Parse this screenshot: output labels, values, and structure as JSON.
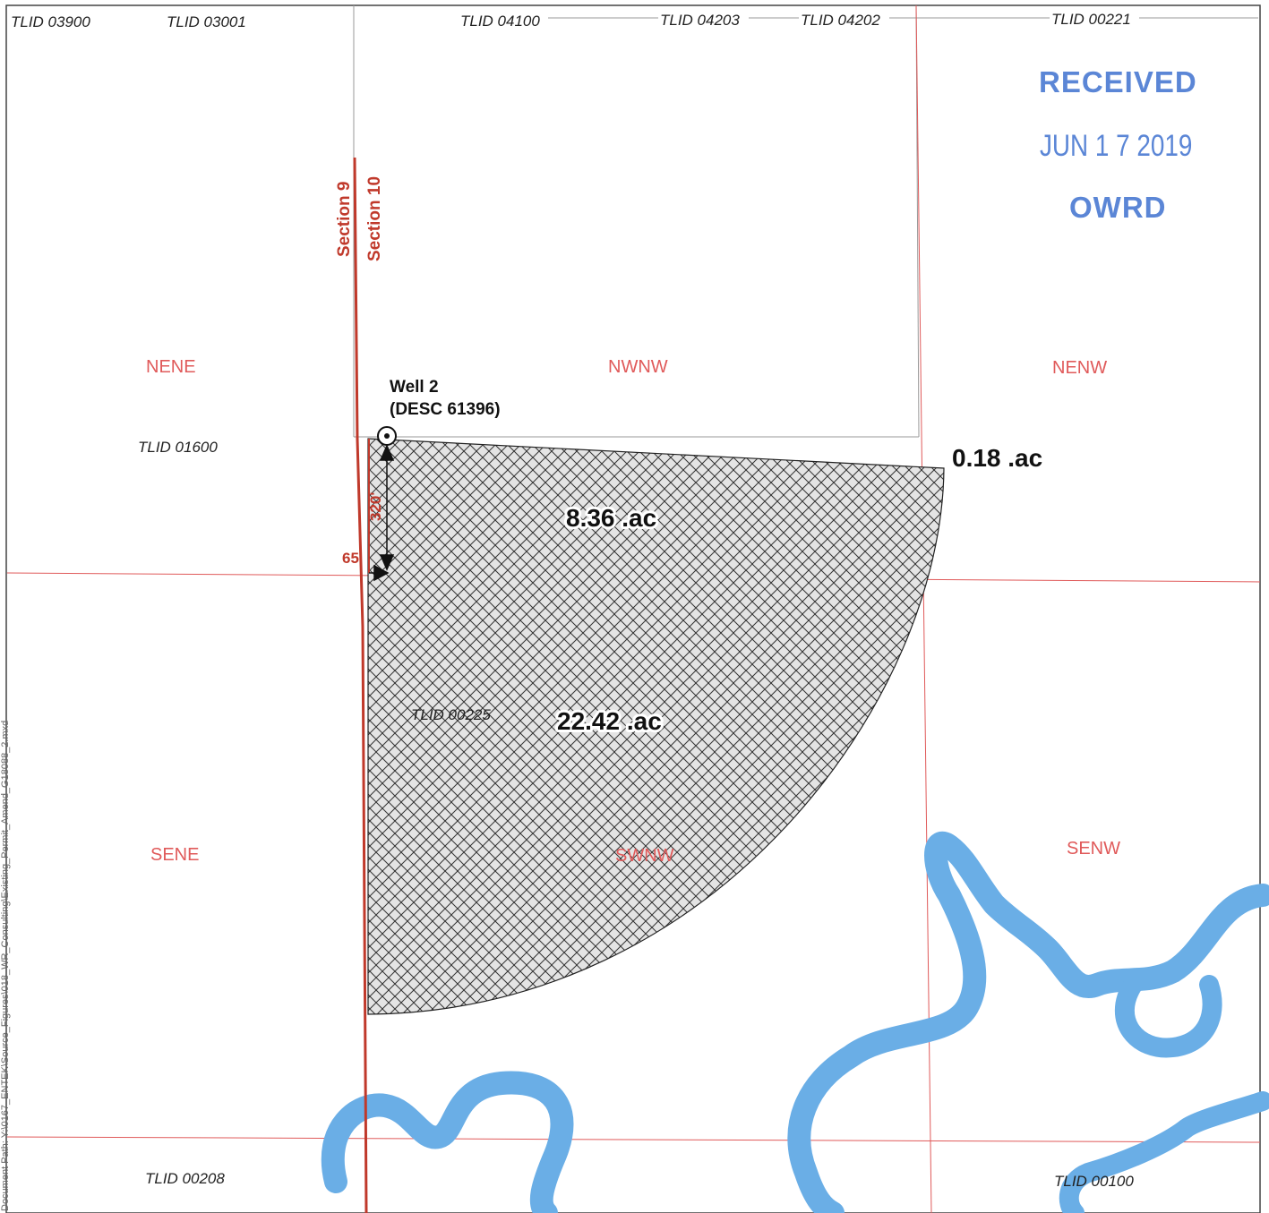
{
  "map": {
    "taxlots": [
      "TLID 03900",
      "TLID 03001",
      "TLID 04100",
      "TLID 04203",
      "TLID 04202",
      "TLID 00221",
      "TLID 01600",
      "TLID 00225",
      "TLID 00208",
      "TLID 00100"
    ],
    "quarter_quarters": [
      "NENE",
      "NWNW",
      "NENW",
      "SENE",
      "SWNW",
      "SENW"
    ],
    "sections": {
      "left": "Section 9",
      "right": "Section 10"
    },
    "well": {
      "name": "Well 2",
      "id": "(DESC 61396)"
    },
    "dimensions": {
      "vertical": "320'",
      "horizontal": "65'"
    },
    "acreages": {
      "outside": "0.18 .ac",
      "north": "8.36 .ac",
      "south": "22.42 .ac"
    },
    "stamp": {
      "line1": "RECEIVED",
      "line2": "JUN 1 7 2019",
      "line3": "OWRD"
    },
    "document_path": "Document Path: Y:\\0167_ENTEK\\Source_Figures\\018_WR_Consulting\\Existing_Permit_Amend_G18088_2.mxd",
    "colors": {
      "plss_lines": "#e05a5a",
      "section_line": "#c0392b",
      "river": "#6aaee6",
      "hatch": "#333333",
      "stamp": "#5b86d6"
    }
  }
}
